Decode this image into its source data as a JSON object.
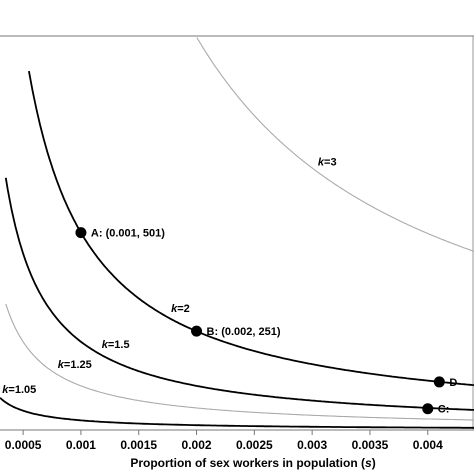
{
  "chart_data": {
    "type": "line",
    "xlabel_prefix": "Proportion of sex workers in population (",
    "xlabel_var": "s",
    "xlabel_suffix": ")",
    "x_ticks": [
      {
        "value": 0.0005,
        "label": "0.0005"
      },
      {
        "value": 0.001,
        "label": "0.001"
      },
      {
        "value": 0.0015,
        "label": "0.0015"
      },
      {
        "value": 0.002,
        "label": "0.002"
      },
      {
        "value": 0.0025,
        "label": "0.0025"
      },
      {
        "value": 0.003,
        "label": "0.003"
      },
      {
        "value": 0.0035,
        "label": "0.0035"
      },
      {
        "value": 0.004,
        "label": "0.004"
      }
    ],
    "xlim": [
      0.0003,
      0.0044
    ],
    "ylim": [
      0,
      1000
    ],
    "reference_line_y": 1000,
    "series": [
      {
        "name": "k=3",
        "var": "k",
        "eq": "=3",
        "color": "#aaaaaa",
        "c": 1.995,
        "x_start": 0.00158,
        "label_at": 0.00305
      },
      {
        "name": "k=2",
        "var": "k",
        "eq": "=2",
        "color": "#000000",
        "c": 0.501,
        "x_start": 0.00055,
        "label_at": 0.00178
      },
      {
        "name": "k=1.5",
        "var": "k",
        "eq": "=1.5",
        "color": "#000000",
        "c": 0.224,
        "x_start": 0.00035,
        "label_at": 0.00118
      },
      {
        "name": "k=1.25",
        "var": "k",
        "eq": "=1.25",
        "color": "#aaaaaa",
        "c": 0.112,
        "x_start": 0.00035,
        "label_at": 0.0008
      },
      {
        "name": "k=1.05",
        "var": "k",
        "eq": "=1.05",
        "color": "#000000",
        "c": 0.0245,
        "x_start": 0.0003,
        "label_at": 0.00032
      }
    ],
    "points": [
      {
        "label": "A: (0.001, 501)",
        "x": 0.001,
        "y": 501
      },
      {
        "label": "B: (0.002, 251)",
        "x": 0.002,
        "y": 251
      },
      {
        "label": "C:",
        "x": 0.004,
        "y": 54
      },
      {
        "label": "D",
        "x": 0.0041,
        "y": 122
      }
    ]
  }
}
